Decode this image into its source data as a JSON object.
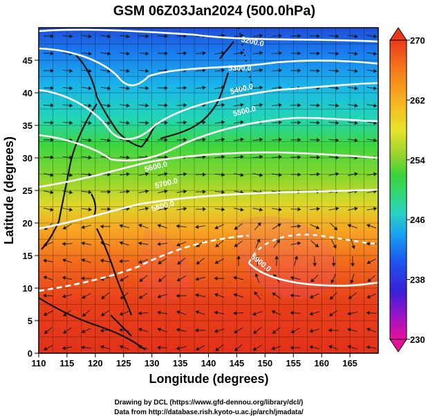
{
  "title": "GSM 06Z03Jan2024 (500.0hPa)",
  "map": {
    "xlabel": "Longitude (degrees)",
    "ylabel": "Latitude  (degrees)",
    "xlim": [
      110,
      170
    ],
    "ylim": [
      0,
      50
    ],
    "x_ticks": [
      "110",
      "115",
      "120",
      "125",
      "130",
      "135",
      "140",
      "145",
      "150",
      "155",
      "160",
      "165"
    ],
    "y_ticks": [
      "0",
      "5",
      "10",
      "15",
      "20",
      "25",
      "30",
      "35",
      "40",
      "45"
    ],
    "grid": true,
    "field": "temperature (K), shaded",
    "overlays": [
      "geopotential height contours (m)",
      "wind streamlines"
    ],
    "contours": [
      {
        "label": "5200.0",
        "value": 5200
      },
      {
        "label": "5300.0",
        "value": 5300
      },
      {
        "label": "5400.0",
        "value": 5400
      },
      {
        "label": "5500.0",
        "value": 5500
      },
      {
        "label": "5600.0",
        "value": 5600
      },
      {
        "label": "5700.0",
        "value": 5700
      },
      {
        "label": "5800.0",
        "value": 5800
      },
      {
        "label": "5900.0",
        "value": 5900
      }
    ]
  },
  "colorbar": {
    "range": [
      230,
      270
    ],
    "ticks": [
      "270",
      "262",
      "254",
      "246",
      "238",
      "230"
    ],
    "colors": [
      "#e8109a",
      "#9a14c8",
      "#3a1fd6",
      "#1c55f0",
      "#1aa0f0",
      "#28d2c6",
      "#2ed87a",
      "#3ed23a",
      "#9ad42a",
      "#e8e42a",
      "#f8b020",
      "#f47a1c",
      "#e83a1a"
    ]
  },
  "footer": {
    "line1": "Drawing by DCL (https://www.gfd-dennou.org/library/dcl/)",
    "line2": "Data from http://database.rish.kyoto-u.ac.jp/arch/jmadata/"
  }
}
